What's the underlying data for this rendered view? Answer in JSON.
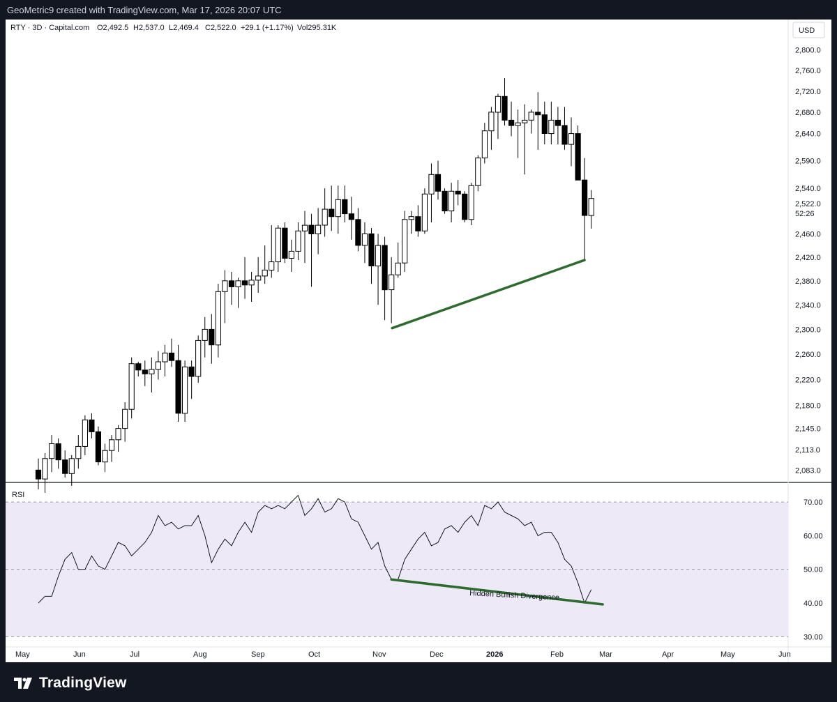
{
  "header": {
    "text": "GeoMetric9 created with TradingView.com, Mar 17, 2026 20:07 UTC"
  },
  "legend": {
    "symbol": "RTY · 3D · Capital.com",
    "open": "O2,492.5",
    "high": "H2,537.0",
    "low": "L2,469.4",
    "close": "C2,522.0",
    "change": "+29.1 (+1.17%)",
    "volume": "Vol295.31K"
  },
  "currency": "USD",
  "price_badge": {
    "price": "2,522.0",
    "countdown": "52:26"
  },
  "rsi_label": "RSI",
  "annotation": "Hidden Bullish Divergence",
  "footer": {
    "brand": "TradingView"
  },
  "colors": {
    "bull_body": "#ffffff",
    "bear_body": "#000000",
    "candle_outline": "#000000",
    "trendline": "#2e6b2e",
    "rsi_line": "#131722",
    "rsi_band": "#ede9f7",
    "background": "#ffffff",
    "frame": "#131722"
  },
  "chart_data": [
    {
      "type": "candlestick",
      "title": "RTY · 3D · Capital.com",
      "y_axis_side": "right",
      "y_scale": "log",
      "ylim": [
        2065,
        2830
      ],
      "y_ticks": [
        2083.0,
        2113.0,
        2145.0,
        2180.0,
        2220.0,
        2260.0,
        2300.0,
        2340.0,
        2380.0,
        2420.0,
        2460.0,
        2540.0,
        2590.0,
        2640.0,
        2680.0,
        2720.0,
        2760.0,
        2800.0
      ],
      "y_tick_labels": [
        "2,083.0",
        "2,113.0",
        "2,145.0",
        "2,180.0",
        "2,220.0",
        "2,260.0",
        "2,300.0",
        "2,340.0",
        "2,380.0",
        "2,420.0",
        "2,460.0",
        "2,540.0",
        "2,590.0",
        "2,640.0",
        "2,680.0",
        "2,720.0",
        "2,760.0",
        "2,800.0"
      ],
      "x_labels": [
        "May",
        "Jun",
        "Jul",
        "Aug",
        "Sep",
        "Oct",
        "Nov",
        "Dec",
        "2026",
        "Feb",
        "Mar",
        "Apr",
        "May",
        "Jun"
      ],
      "candles": [
        [
          2083,
          2100,
          2055,
          2070
        ],
        [
          2070,
          2108,
          2050,
          2100
        ],
        [
          2100,
          2135,
          2080,
          2122
        ],
        [
          2122,
          2130,
          2085,
          2098
        ],
        [
          2098,
          2112,
          2072,
          2078
        ],
        [
          2078,
          2105,
          2060,
          2100
        ],
        [
          2100,
          2135,
          2085,
          2118
        ],
        [
          2118,
          2165,
          2105,
          2158
        ],
        [
          2158,
          2168,
          2130,
          2140
        ],
        [
          2140,
          2148,
          2090,
          2095
        ],
        [
          2095,
          2122,
          2080,
          2112
        ],
        [
          2112,
          2135,
          2095,
          2128
        ],
        [
          2128,
          2150,
          2110,
          2145
        ],
        [
          2145,
          2185,
          2125,
          2174
        ],
        [
          2174,
          2255,
          2160,
          2245
        ],
        [
          2245,
          2248,
          2225,
          2235
        ],
        [
          2235,
          2250,
          2210,
          2229
        ],
        [
          2229,
          2255,
          2200,
          2236
        ],
        [
          2236,
          2265,
          2220,
          2248
        ],
        [
          2248,
          2275,
          2225,
          2262
        ],
        [
          2262,
          2285,
          2240,
          2250
        ],
        [
          2250,
          2275,
          2155,
          2168
        ],
        [
          2168,
          2250,
          2155,
          2240
        ],
        [
          2240,
          2250,
          2190,
          2225
        ],
        [
          2225,
          2290,
          2215,
          2282
        ],
        [
          2282,
          2320,
          2255,
          2300
        ],
        [
          2300,
          2325,
          2245,
          2275
        ],
        [
          2275,
          2375,
          2255,
          2362
        ],
        [
          2362,
          2398,
          2310,
          2380
        ],
        [
          2380,
          2395,
          2340,
          2370
        ],
        [
          2370,
          2385,
          2335,
          2380
        ],
        [
          2380,
          2420,
          2350,
          2373
        ],
        [
          2373,
          2395,
          2345,
          2381
        ],
        [
          2381,
          2420,
          2360,
          2388
        ],
        [
          2388,
          2440,
          2375,
          2398
        ],
        [
          2398,
          2475,
          2385,
          2412
        ],
        [
          2412,
          2475,
          2395,
          2470
        ],
        [
          2470,
          2480,
          2410,
          2418
        ],
        [
          2418,
          2450,
          2395,
          2430
        ],
        [
          2430,
          2480,
          2415,
          2465
        ],
        [
          2465,
          2500,
          2410,
          2475
        ],
        [
          2475,
          2495,
          2370,
          2460
        ],
        [
          2460,
          2505,
          2425,
          2475
        ],
        [
          2475,
          2540,
          2455,
          2503
        ],
        [
          2503,
          2545,
          2465,
          2490
        ],
        [
          2490,
          2545,
          2460,
          2520
        ],
        [
          2520,
          2545,
          2480,
          2495
        ],
        [
          2495,
          2525,
          2450,
          2485
        ],
        [
          2485,
          2505,
          2430,
          2440
        ],
        [
          2440,
          2480,
          2410,
          2460
        ],
        [
          2460,
          2470,
          2375,
          2405
        ],
        [
          2405,
          2460,
          2340,
          2440
        ],
        [
          2440,
          2455,
          2315,
          2365
        ],
        [
          2365,
          2420,
          2310,
          2390
        ],
        [
          2390,
          2445,
          2385,
          2410
        ],
        [
          2410,
          2500,
          2395,
          2485
        ],
        [
          2485,
          2500,
          2460,
          2490
        ],
        [
          2490,
          2510,
          2455,
          2465
        ],
        [
          2465,
          2540,
          2460,
          2530
        ],
        [
          2530,
          2585,
          2480,
          2565
        ],
        [
          2565,
          2590,
          2520,
          2535
        ],
        [
          2535,
          2540,
          2495,
          2500
        ],
        [
          2500,
          2550,
          2480,
          2535
        ],
        [
          2535,
          2555,
          2510,
          2530
        ],
        [
          2530,
          2535,
          2480,
          2485
        ],
        [
          2485,
          2550,
          2475,
          2545
        ],
        [
          2545,
          2600,
          2535,
          2595
        ],
        [
          2595,
          2660,
          2585,
          2645
        ],
        [
          2645,
          2690,
          2610,
          2680
        ],
        [
          2680,
          2715,
          2630,
          2710
        ],
        [
          2710,
          2745,
          2655,
          2665
        ],
        [
          2665,
          2700,
          2635,
          2655
        ],
        [
          2655,
          2685,
          2595,
          2660
        ],
        [
          2660,
          2695,
          2565,
          2665
        ],
        [
          2665,
          2685,
          2640,
          2680
        ],
        [
          2680,
          2718,
          2610,
          2675
        ],
        [
          2675,
          2700,
          2620,
          2640
        ],
        [
          2640,
          2700,
          2620,
          2665
        ],
        [
          2665,
          2690,
          2620,
          2655
        ],
        [
          2655,
          2690,
          2610,
          2620
        ],
        [
          2620,
          2670,
          2580,
          2640
        ],
        [
          2640,
          2655,
          2555,
          2555
        ],
        [
          2555,
          2595,
          2415,
          2492
        ],
        [
          2492,
          2537,
          2469,
          2522
        ]
      ],
      "trendlines": [
        {
          "from": {
            "x": "Nov (low)",
            "y": 2302
          },
          "to": {
            "x": "Mar (low)",
            "y": 2415
          }
        }
      ]
    },
    {
      "type": "line",
      "title": "RSI",
      "y_axis_side": "right",
      "ylim": [
        28,
        75
      ],
      "y_ticks": [
        30.0,
        40.0,
        50.0,
        60.0,
        70.0
      ],
      "y_tick_labels": [
        "30.00",
        "40.00",
        "50.00",
        "60.00",
        "70.00"
      ],
      "bands": {
        "upper": 70,
        "middle": 50,
        "lower": 30
      },
      "series": [
        {
          "values": [
            40,
            42,
            42,
            48,
            53,
            55,
            50,
            50,
            54,
            51,
            50,
            54,
            58,
            57,
            54,
            56,
            58,
            61,
            66,
            63,
            64,
            62,
            63,
            63,
            66,
            60,
            52,
            56,
            59,
            57,
            61,
            64,
            61,
            67,
            69,
            68,
            69,
            68,
            70,
            72,
            66,
            68,
            71,
            67,
            68,
            71,
            70,
            65,
            64,
            60,
            56,
            58,
            51,
            47,
            47,
            53,
            56,
            59,
            61,
            57,
            58,
            62,
            63,
            61,
            64,
            66,
            63,
            69,
            68,
            70,
            67,
            66,
            65,
            63,
            64,
            60,
            61,
            61,
            58,
            53,
            51,
            46,
            40,
            44
          ]
        }
      ],
      "trendlines": [
        {
          "from": {
            "x": "Nov (low)",
            "y": 47
          },
          "to": {
            "x": "Mar (low)",
            "y": 40
          },
          "label": "Hidden Bullish Divergence"
        }
      ]
    }
  ]
}
